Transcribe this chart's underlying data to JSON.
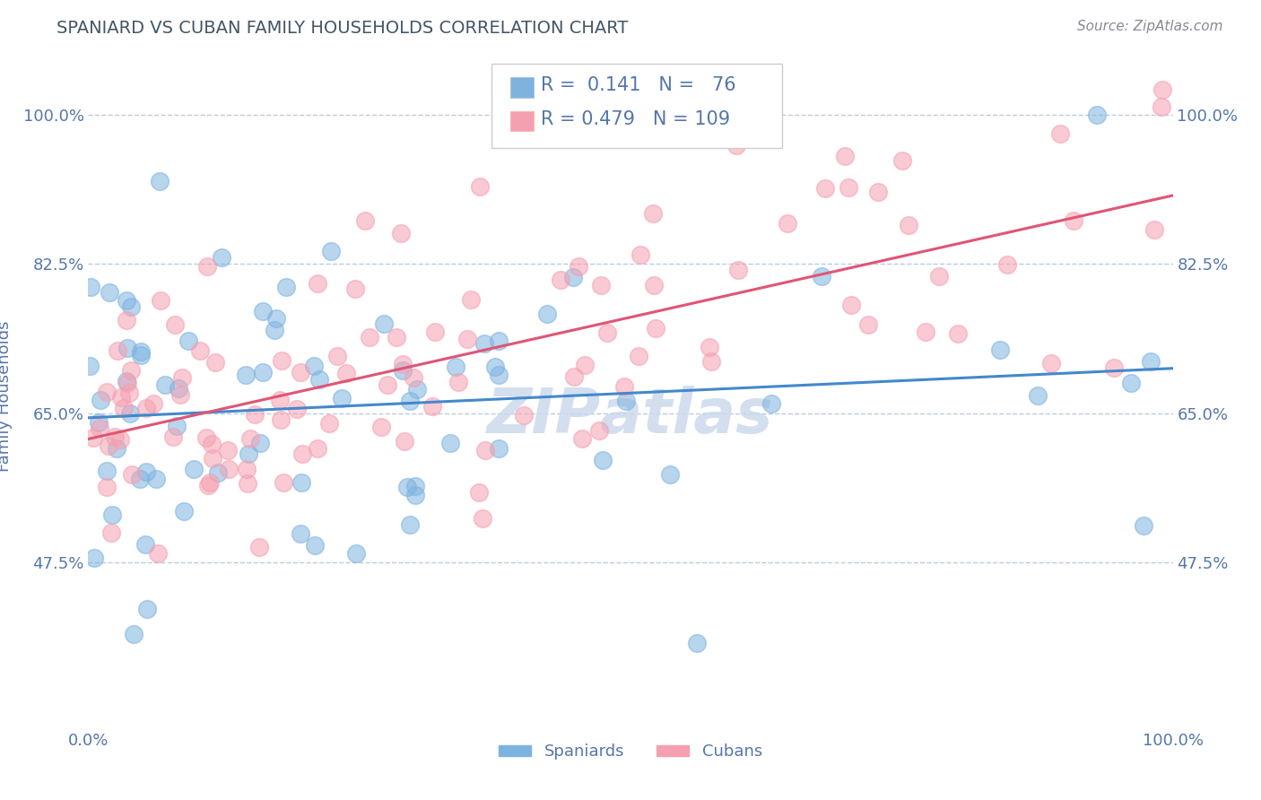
{
  "title": "SPANIARD VS CUBAN FAMILY HOUSEHOLDS CORRELATION CHART",
  "source": "Source: ZipAtlas.com",
  "ylabel": "Family Households",
  "xlim": [
    0.0,
    1.0
  ],
  "ylim": [
    0.28,
    1.06
  ],
  "yticks": [
    0.475,
    0.65,
    0.825,
    1.0
  ],
  "ytick_labels": [
    "47.5%",
    "65.0%",
    "82.5%",
    "100.0%"
  ],
  "xticks": [
    0.0,
    1.0
  ],
  "xtick_labels": [
    "0.0%",
    "100.0%"
  ],
  "spaniards_R": 0.141,
  "spaniards_N": 76,
  "cubans_R": 0.479,
  "cubans_N": 109,
  "spaniard_color": "#7EB3E0",
  "cuban_color": "#F5A0B0",
  "spaniard_line_color": "#4488CC",
  "cuban_line_color": "#E05575",
  "text_color": "#5577AA",
  "title_color": "#445566",
  "grid_color": "#BBCCDD",
  "watermark_color": "#C8D8EC",
  "background_color": "#FFFFFF",
  "spaniard_seed": 42,
  "cuban_seed": 99
}
